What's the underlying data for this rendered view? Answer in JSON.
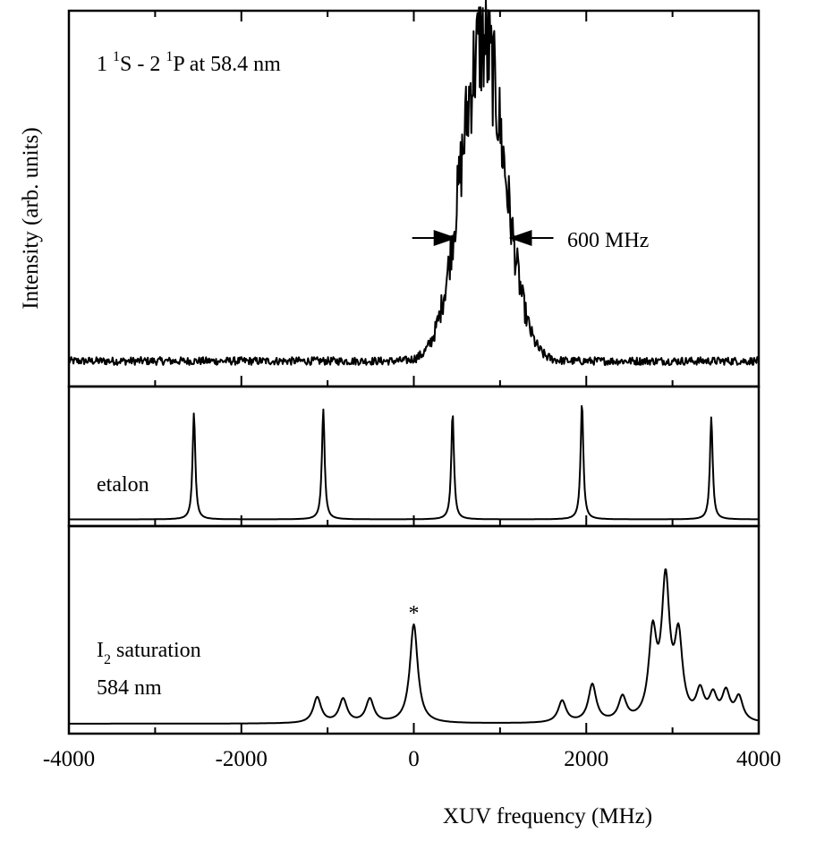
{
  "chart_data": {
    "type": "line",
    "xlabel": "XUV frequency (MHz)",
    "ylabel": "Intensity (arb. units)",
    "xlim": [
      -4000,
      4000
    ],
    "x_ticks": [
      -4000,
      -2000,
      0,
      2000,
      4000
    ],
    "x_tick_labels": [
      "-4000",
      "-2000",
      "0",
      "2000",
      "4000"
    ],
    "y_tick_labels": [],
    "grid": false,
    "panels": [
      {
        "id": "xuv",
        "label": {
          "main": "1 ",
          "sup1": "1",
          "mid": "S - 2 ",
          "sup2": "1",
          "end": "P at 58.4 nm"
        },
        "annotation": "600 MHz",
        "fwhm_markers_x": [
          500,
          1100
        ],
        "series": [
          {
            "kind": "gaussian",
            "center": 800,
            "fwhm": 600,
            "amplitude": 1.0,
            "baseline": 0.0
          }
        ],
        "ylim": [
          -0.08,
          1.1
        ]
      },
      {
        "id": "etalon",
        "label": "etalon",
        "series": [
          {
            "kind": "lorentzian-peaks",
            "fwhm": 38,
            "baseline": 0.0,
            "peaks": [
              {
                "x": -2550,
                "height": 0.8
              },
              {
                "x": -1050,
                "height": 0.83
              },
              {
                "x": 450,
                "height": 0.8
              },
              {
                "x": 1950,
                "height": 0.88
              },
              {
                "x": 3450,
                "height": 0.77
              }
            ]
          }
        ],
        "ylim": [
          -0.05,
          1.0
        ]
      },
      {
        "id": "iodine",
        "label_line1_main": "I",
        "label_line1_sub": "2",
        "label_line1_rest": " saturation",
        "label_line2": "584 nm",
        "peak_marker": "*",
        "peak_marker_x": 0,
        "series": [
          {
            "kind": "lorentzian-peaks",
            "fwhm": 110,
            "baseline": 0.0,
            "peaks": [
              {
                "x": -1120,
                "height": 0.13
              },
              {
                "x": -820,
                "height": 0.12
              },
              {
                "x": -510,
                "height": 0.12
              },
              {
                "x": 0,
                "height": 0.5
              },
              {
                "x": 1720,
                "height": 0.11
              },
              {
                "x": 2070,
                "height": 0.19
              },
              {
                "x": 2420,
                "height": 0.12
              },
              {
                "x": 2770,
                "height": 0.42
              },
              {
                "x": 2920,
                "height": 0.68
              },
              {
                "x": 3070,
                "height": 0.4
              },
              {
                "x": 3320,
                "height": 0.14
              },
              {
                "x": 3470,
                "height": 0.12
              },
              {
                "x": 3620,
                "height": 0.14
              },
              {
                "x": 3770,
                "height": 0.12
              }
            ]
          }
        ],
        "ylim": [
          -0.05,
          1.0
        ]
      }
    ]
  }
}
